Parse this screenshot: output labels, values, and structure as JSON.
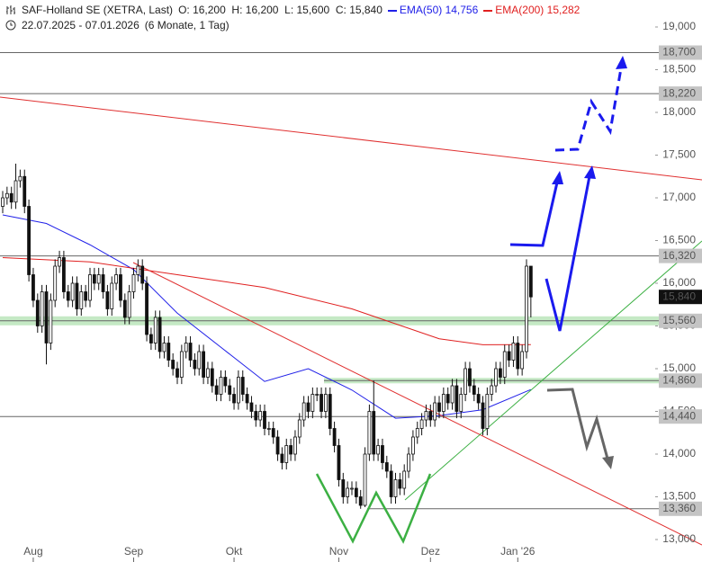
{
  "chart_data": {
    "type": "candlestick",
    "title": "SAF-Holland SE (XETRA, Last)",
    "info": "O: 16,200  H: 16,200  L: 15,600  C: 15,840",
    "subtitle": "22.07.2025 - 07.01.2026",
    "period": "(6 Monate, 1 Tag)",
    "candles": {
      "open": [
        16.9,
        17.0,
        17.05,
        16.95,
        17.2,
        17.25,
        16.9,
        16.1,
        15.8,
        15.5,
        15.9,
        15.3,
        15.8,
        16.2,
        16.3,
        15.9,
        15.8,
        16.0,
        15.7,
        15.9,
        15.8,
        16.1,
        16.0,
        16.1,
        15.9,
        15.7,
        16.0,
        16.1,
        15.8,
        15.6,
        15.9,
        16.1,
        16.2,
        16.0,
        15.4,
        15.3,
        15.6,
        15.2,
        15.3,
        15.1,
        15.0,
        14.9,
        15.2,
        15.3,
        15.1,
        15.0,
        15.2,
        14.9,
        15.0,
        14.8,
        14.7,
        14.9,
        14.8,
        14.7,
        14.6,
        14.9,
        14.7,
        14.6,
        14.5,
        14.4,
        14.5,
        14.3,
        14.3,
        14.2,
        14.0,
        13.9,
        14.1,
        14.0,
        14.2,
        14.4,
        14.6,
        14.5,
        14.7,
        14.7,
        14.5,
        14.7,
        14.3,
        14.1,
        13.7,
        13.5,
        13.6,
        13.6,
        13.5,
        13.4,
        14.0,
        14.5,
        14.0,
        14.1,
        13.9,
        13.8,
        13.5,
        13.7,
        13.6,
        13.8,
        14.0,
        14.2,
        14.3,
        14.4,
        14.5,
        14.4,
        14.6,
        14.5,
        14.7,
        14.6,
        14.8,
        14.5,
        14.7,
        15.0,
        14.8,
        14.7,
        14.6,
        14.3,
        14.7,
        14.8,
        15.0,
        14.9,
        15.2,
        15.1,
        15.3,
        15.0,
        15.2,
        16.2
      ],
      "high": [
        17.08,
        17.13,
        17.13,
        17.4,
        17.33,
        17.33,
        16.98,
        16.18,
        15.88,
        15.98,
        15.98,
        15.88,
        16.28,
        16.38,
        16.38,
        15.98,
        16.08,
        16.08,
        15.98,
        15.98,
        16.18,
        16.18,
        16.18,
        16.18,
        15.98,
        16.08,
        16.18,
        16.18,
        15.88,
        15.98,
        16.18,
        16.28,
        16.28,
        16.08,
        15.48,
        15.68,
        15.68,
        15.38,
        15.38,
        15.18,
        15.08,
        15.28,
        15.38,
        15.38,
        15.18,
        15.28,
        15.28,
        15.08,
        15.08,
        14.88,
        14.98,
        14.98,
        14.88,
        14.78,
        14.98,
        14.98,
        14.78,
        14.68,
        14.58,
        14.58,
        14.58,
        14.38,
        14.38,
        14.28,
        14.08,
        14.18,
        14.18,
        14.28,
        14.48,
        14.68,
        14.68,
        14.78,
        14.78,
        14.78,
        14.78,
        14.78,
        14.38,
        14.18,
        13.78,
        13.68,
        13.68,
        13.68,
        13.58,
        14.08,
        14.58,
        14.86,
        14.18,
        14.18,
        13.98,
        13.88,
        13.78,
        13.78,
        13.88,
        14.08,
        14.28,
        14.38,
        14.48,
        14.58,
        14.58,
        14.68,
        14.68,
        14.78,
        14.78,
        14.88,
        14.88,
        14.78,
        15.08,
        15.08,
        14.88,
        14.78,
        14.68,
        14.78,
        14.88,
        15.08,
        15.08,
        15.28,
        15.28,
        15.38,
        15.38,
        15.28,
        16.28,
        16.2
      ],
      "low": [
        16.82,
        16.92,
        16.87,
        16.87,
        17.12,
        16.82,
        16.02,
        15.72,
        15.42,
        15.42,
        15.05,
        15.22,
        15.72,
        16.12,
        15.82,
        15.72,
        15.72,
        15.62,
        15.62,
        15.72,
        15.72,
        15.92,
        15.92,
        15.82,
        15.62,
        15.62,
        15.92,
        15.72,
        15.52,
        15.52,
        15.82,
        16.02,
        15.92,
        15.32,
        15.22,
        15.22,
        15.12,
        15.12,
        15.02,
        14.92,
        14.82,
        14.82,
        15.12,
        15.02,
        14.92,
        14.92,
        14.82,
        14.82,
        14.72,
        14.62,
        14.62,
        14.72,
        14.62,
        14.52,
        14.52,
        14.62,
        14.52,
        14.42,
        14.32,
        14.32,
        14.22,
        14.22,
        14.12,
        13.92,
        13.82,
        13.82,
        13.92,
        13.92,
        14.12,
        14.32,
        14.42,
        14.42,
        14.62,
        14.42,
        14.42,
        14.22,
        14.02,
        13.62,
        13.42,
        13.42,
        13.52,
        13.42,
        13.36,
        13.38,
        13.92,
        13.92,
        13.92,
        13.82,
        13.72,
        13.42,
        13.42,
        13.52,
        13.52,
        13.72,
        13.92,
        14.12,
        14.22,
        14.32,
        14.32,
        14.32,
        14.42,
        14.42,
        14.52,
        14.52,
        14.42,
        14.42,
        14.62,
        14.72,
        14.62,
        14.52,
        14.22,
        14.22,
        14.62,
        14.72,
        14.82,
        14.82,
        15.02,
        15.02,
        14.92,
        14.92,
        15.12,
        15.6
      ],
      "close": [
        17.0,
        17.05,
        16.95,
        17.2,
        17.25,
        16.9,
        16.1,
        15.8,
        15.5,
        15.9,
        15.3,
        15.8,
        16.2,
        16.3,
        15.9,
        15.8,
        16.0,
        15.7,
        15.9,
        15.8,
        16.1,
        16.0,
        16.1,
        15.9,
        15.7,
        16.0,
        16.1,
        15.8,
        15.6,
        15.9,
        16.1,
        16.2,
        16.0,
        15.4,
        15.3,
        15.6,
        15.2,
        15.3,
        15.1,
        15.0,
        14.9,
        15.2,
        15.3,
        15.1,
        15.0,
        15.2,
        14.9,
        15.0,
        14.8,
        14.7,
        14.9,
        14.8,
        14.7,
        14.6,
        14.9,
        14.7,
        14.6,
        14.5,
        14.4,
        14.5,
        14.3,
        14.3,
        14.2,
        14.0,
        13.9,
        14.1,
        14.0,
        14.2,
        14.4,
        14.6,
        14.5,
        14.7,
        14.7,
        14.5,
        14.7,
        14.3,
        14.1,
        13.7,
        13.5,
        13.6,
        13.6,
        13.5,
        13.4,
        14.0,
        14.5,
        14.0,
        14.1,
        13.9,
        13.8,
        13.5,
        13.7,
        13.6,
        13.8,
        14.0,
        14.2,
        14.3,
        14.4,
        14.5,
        14.4,
        14.6,
        14.5,
        14.7,
        14.6,
        14.8,
        14.5,
        14.7,
        15.0,
        14.8,
        14.7,
        14.6,
        14.3,
        14.7,
        14.8,
        15.0,
        14.9,
        15.2,
        15.1,
        15.3,
        15.0,
        15.2,
        16.2,
        15.84
      ]
    },
    "series": [
      {
        "name": "EMA(50)",
        "legend_value": "14,756",
        "color": "#2020e8",
        "x": [
          0,
          10,
          20,
          30,
          40,
          50,
          60,
          70,
          80,
          90,
          100,
          110,
          121
        ],
        "values": [
          16.8,
          16.7,
          16.45,
          16.16,
          15.65,
          15.25,
          14.85,
          15.0,
          14.75,
          14.42,
          14.45,
          14.52,
          14.756
        ]
      },
      {
        "name": "EMA(200)",
        "legend_value": "15,282",
        "color": "#e02020",
        "x": [
          0,
          20,
          40,
          60,
          80,
          100,
          110,
          121
        ],
        "values": [
          16.3,
          16.25,
          16.1,
          15.95,
          15.7,
          15.35,
          15.28,
          15.282
        ]
      }
    ],
    "levels": [
      {
        "value": 18.7,
        "label": "18,700"
      },
      {
        "value": 18.22,
        "label": "18,220"
      },
      {
        "value": 16.32,
        "label": "16,320"
      },
      {
        "value": 15.56,
        "label": "15,560",
        "band": true
      },
      {
        "value": 14.44,
        "label": "14,440"
      },
      {
        "value": 14.86,
        "label": "14,860",
        "band": true
      },
      {
        "value": 13.36,
        "label": "13,360"
      }
    ],
    "last": {
      "value": 15.84,
      "label": "15,840"
    },
    "ylim": [
      13.0,
      19.0
    ],
    "yticks": [
      {
        "value": 19,
        "label": "19,000"
      },
      {
        "value": 18.5,
        "label": "18,500"
      },
      {
        "value": 18,
        "label": "18,000"
      },
      {
        "value": 17.5,
        "label": "17,500"
      },
      {
        "value": 17,
        "label": "17,000"
      },
      {
        "value": 16.5,
        "label": "16,500"
      },
      {
        "value": 16,
        "label": "16,000"
      },
      {
        "value": 15.5,
        "label": "15,500"
      },
      {
        "value": 15,
        "label": "15,000"
      },
      {
        "value": 14.5,
        "label": "14,500"
      },
      {
        "value": 14,
        "label": "14,000"
      },
      {
        "value": 13.5,
        "label": "13,500"
      },
      {
        "value": 13,
        "label": "13,000"
      }
    ],
    "xticks": [
      {
        "value": 7,
        "label": "Aug"
      },
      {
        "value": 30,
        "label": "Sep"
      },
      {
        "value": 53,
        "label": "Okt"
      },
      {
        "value": 77,
        "label": "Nov"
      },
      {
        "value": 98,
        "label": "Dez"
      },
      {
        "value": 118,
        "label": "Jan '26"
      }
    ]
  }
}
